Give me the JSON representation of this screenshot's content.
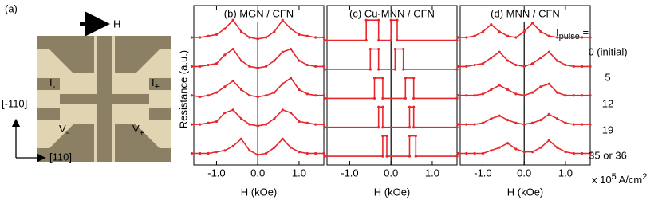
{
  "micrograph": {
    "label": "(a)",
    "field": "H",
    "i_minus": {
      "main": "I",
      "sub": "-"
    },
    "i_plus": {
      "main": "I",
      "sub": "+"
    },
    "v_minus": {
      "main": "V",
      "sub": "-"
    },
    "v_plus": {
      "main": "V",
      "sub": "+"
    },
    "axis_vertical": "[-110]",
    "axis_horizontal": "[110]"
  },
  "chart_data": [
    {
      "type": "line",
      "title": "(b) MGN / CFN",
      "ylabel": "Resistance (a.u.)",
      "xlabel": "H (kOe)",
      "xlim": [
        -1.55,
        1.6
      ],
      "ylim": [
        -0.3,
        5.2
      ],
      "xticks": [
        {
          "value": -1,
          "label": "-1.0"
        },
        {
          "value": 0,
          "label": "0.0"
        },
        {
          "value": 1,
          "label": "1.0"
        }
      ],
      "x": [
        -1.6,
        -1.4,
        -1.2,
        -1.0,
        -0.8,
        -0.6,
        -0.4,
        -0.2,
        0,
        0.2,
        0.4,
        0.6,
        0.8,
        1.0,
        1.2,
        1.4,
        1.6
      ],
      "series": [
        {
          "color": "#e8262b",
          "values": [
            4.1,
            4.1,
            4.15,
            4.2,
            4.4,
            4.7,
            4.3,
            4.1,
            4.05,
            4.1,
            4.3,
            4.7,
            4.4,
            4.2,
            4.15,
            4.1,
            4.1
          ]
        },
        {
          "color": "#e8262b",
          "values": [
            3.1,
            3.1,
            3.15,
            3.2,
            3.5,
            3.7,
            3.3,
            3.1,
            3.05,
            3.1,
            3.3,
            3.6,
            3.7,
            3.3,
            3.15,
            3.1,
            3.1
          ]
        },
        {
          "color": "#e8262b",
          "values": [
            2.1,
            2.05,
            2.1,
            2.2,
            2.4,
            2.6,
            2.3,
            2.1,
            2.05,
            2.1,
            2.2,
            2.5,
            2.7,
            2.3,
            2.15,
            2.1,
            2.1
          ]
        },
        {
          "color": "#e8262b",
          "values": [
            1.1,
            1.1,
            1.15,
            1.2,
            1.5,
            1.6,
            1.3,
            1.1,
            1.05,
            1.1,
            1.3,
            1.6,
            1.5,
            1.2,
            1.15,
            1.1,
            1.1
          ]
        },
        {
          "color": "#e8262b",
          "values": [
            0.1,
            0.1,
            0.1,
            0.15,
            0.2,
            0.35,
            0.6,
            0.2,
            0.05,
            0.1,
            0.3,
            0.6,
            0.3,
            0.15,
            0.1,
            0.1,
            0.1
          ]
        }
      ]
    },
    {
      "type": "line",
      "title": "(c) Cu-MNN / CFN",
      "xlabel": "H (kOe)",
      "xlim": [
        -1.55,
        1.6
      ],
      "ylim": [
        -0.3,
        5.2
      ],
      "xticks": [
        {
          "value": -1,
          "label": "-1.0"
        },
        {
          "value": 0,
          "label": "0.0"
        },
        {
          "value": 1,
          "label": "1.0"
        }
      ],
      "series": [
        {
          "color": "#e8262b",
          "x": [
            -1.6,
            -0.6,
            -0.6,
            -0.3,
            -0.3,
            0.0,
            0.0,
            0.15,
            0.15,
            1.6
          ],
          "values": [
            4,
            4,
            4.7,
            4.7,
            4,
            4,
            4.7,
            4.7,
            4,
            4
          ]
        },
        {
          "color": "#e8262b",
          "x": [
            -1.6,
            -0.5,
            -0.5,
            -0.3,
            -0.3,
            0.1,
            0.1,
            0.3,
            0.3,
            1.6
          ],
          "values": [
            3,
            3,
            3.7,
            3.7,
            3,
            3,
            3.7,
            3.7,
            3,
            3
          ]
        },
        {
          "color": "#e8262b",
          "x": [
            -1.6,
            -0.4,
            -0.4,
            -0.2,
            -0.2,
            0.35,
            0.35,
            0.55,
            0.55,
            1.6
          ],
          "values": [
            2,
            2,
            2.7,
            2.7,
            2,
            2,
            2.7,
            2.7,
            2,
            2
          ]
        },
        {
          "color": "#e8262b",
          "x": [
            -1.6,
            -0.3,
            -0.3,
            -0.2,
            -0.2,
            0.45,
            0.45,
            0.55,
            0.55,
            1.6
          ],
          "values": [
            1,
            1,
            1.7,
            1.7,
            1,
            1,
            1.7,
            1.7,
            1,
            1
          ]
        },
        {
          "color": "#e8262b",
          "x": [
            -1.6,
            -0.2,
            -0.2,
            -0.1,
            -0.1,
            0.45,
            0.45,
            0.6,
            0.6,
            1.6
          ],
          "values": [
            0,
            0,
            0.7,
            0.7,
            0,
            0,
            0.7,
            0.7,
            0,
            0
          ]
        }
      ]
    },
    {
      "type": "line",
      "title": "(d) MNN / CFN",
      "xlabel": "H (kOe)",
      "xlim": [
        -1.55,
        1.6
      ],
      "ylim": [
        -0.3,
        5.2
      ],
      "xticks": [
        {
          "value": -1,
          "label": "-1.0"
        },
        {
          "value": 0,
          "label": "0.0"
        },
        {
          "value": 1,
          "label": "1.0"
        }
      ],
      "x": [
        -1.6,
        -1.4,
        -1.2,
        -1.0,
        -0.8,
        -0.6,
        -0.4,
        -0.2,
        0,
        0.2,
        0.4,
        0.6,
        0.8,
        1.0,
        1.2,
        1.4,
        1.6
      ],
      "series": [
        {
          "color": "#e8262b",
          "values": [
            4.1,
            4.1,
            4.15,
            4.3,
            4.55,
            4.3,
            4.15,
            4.1,
            4.3,
            4.6,
            4.3,
            4.15,
            4.1,
            4.1,
            4.1,
            4.1,
            4.1
          ]
        },
        {
          "color": "#e8262b",
          "values": [
            3.1,
            3.1,
            3.15,
            3.2,
            3.4,
            3.6,
            3.3,
            3.15,
            3.1,
            3.2,
            3.4,
            3.6,
            3.3,
            3.15,
            3.1,
            3.1,
            3.1
          ]
        },
        {
          "color": "#e8262b",
          "values": [
            2.1,
            2.1,
            2.1,
            2.15,
            2.3,
            2.45,
            2.3,
            2.15,
            2.1,
            2.2,
            2.4,
            2.5,
            2.2,
            2.1,
            2.1,
            2.1,
            2.1
          ]
        },
        {
          "color": "#e8262b",
          "values": [
            1.1,
            1.1,
            1.1,
            1.15,
            1.3,
            1.4,
            1.25,
            1.15,
            1.1,
            1.15,
            1.25,
            1.45,
            1.3,
            1.15,
            1.1,
            1.1,
            1.1
          ]
        },
        {
          "color": "#e8262b",
          "values": [
            0.1,
            0.1,
            0.1,
            0.1,
            0.2,
            0.3,
            0.45,
            0.25,
            0.15,
            0.15,
            0.3,
            0.55,
            0.3,
            0.15,
            0.1,
            0.1,
            0.1
          ]
        }
      ]
    }
  ],
  "pulse_legend": {
    "title": "I",
    "title_sub": "pulse",
    "title_suffix": " =",
    "labels": [
      "0 (initial)",
      "5",
      "12",
      "19",
      "35 or 36"
    ],
    "unit": {
      "text": "x 10",
      "sup": "5",
      "text2": " A/cm",
      "sup2": "2"
    }
  }
}
